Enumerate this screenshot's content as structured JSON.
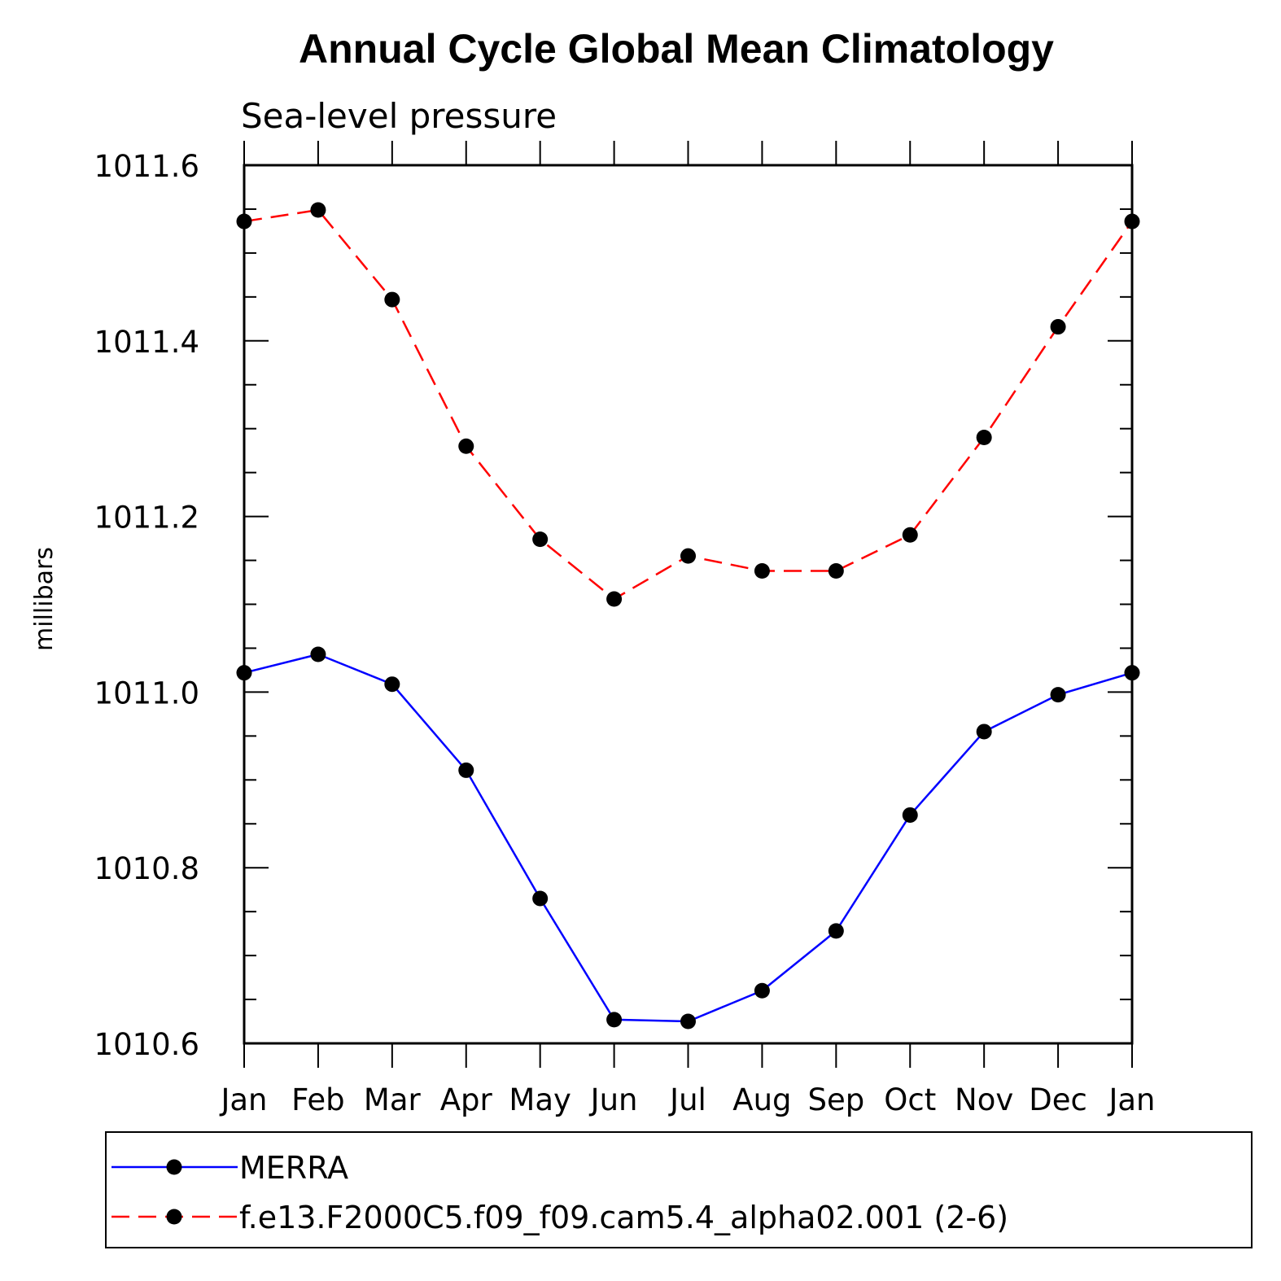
{
  "chart_data": {
    "type": "line",
    "title": "Annual Cycle Global Mean Climatology",
    "subtitle": "Sea-level pressure",
    "ylabel": "millibars",
    "xlabel": "",
    "categories": [
      "Jan",
      "Feb",
      "Mar",
      "Apr",
      "May",
      "Jun",
      "Jul",
      "Aug",
      "Sep",
      "Oct",
      "Nov",
      "Dec",
      "Jan"
    ],
    "ylim": [
      1010.6,
      1011.6
    ],
    "yticks": [
      "1010.6",
      "1010.8",
      "1011.0",
      "1011.2",
      "1011.4",
      "1011.6"
    ],
    "legend_position": "bottom",
    "series": [
      {
        "name": "MERRA",
        "color": "#0000ff",
        "style": "solid",
        "values": [
          1011.022,
          1011.043,
          1011.009,
          1010.911,
          1010.765,
          1010.627,
          1010.625,
          1010.66,
          1010.728,
          1010.86,
          1010.955,
          1010.997,
          1011.022
        ]
      },
      {
        "name": "f.e13.F2000C5.f09_f09.cam5.4_alpha02.001 (2-6)",
        "color": "#ff0000",
        "style": "dashed",
        "values": [
          1011.536,
          1011.549,
          1011.447,
          1011.28,
          1011.174,
          1011.106,
          1011.155,
          1011.138,
          1011.138,
          1011.179,
          1011.29,
          1011.416,
          1011.536
        ]
      }
    ]
  }
}
